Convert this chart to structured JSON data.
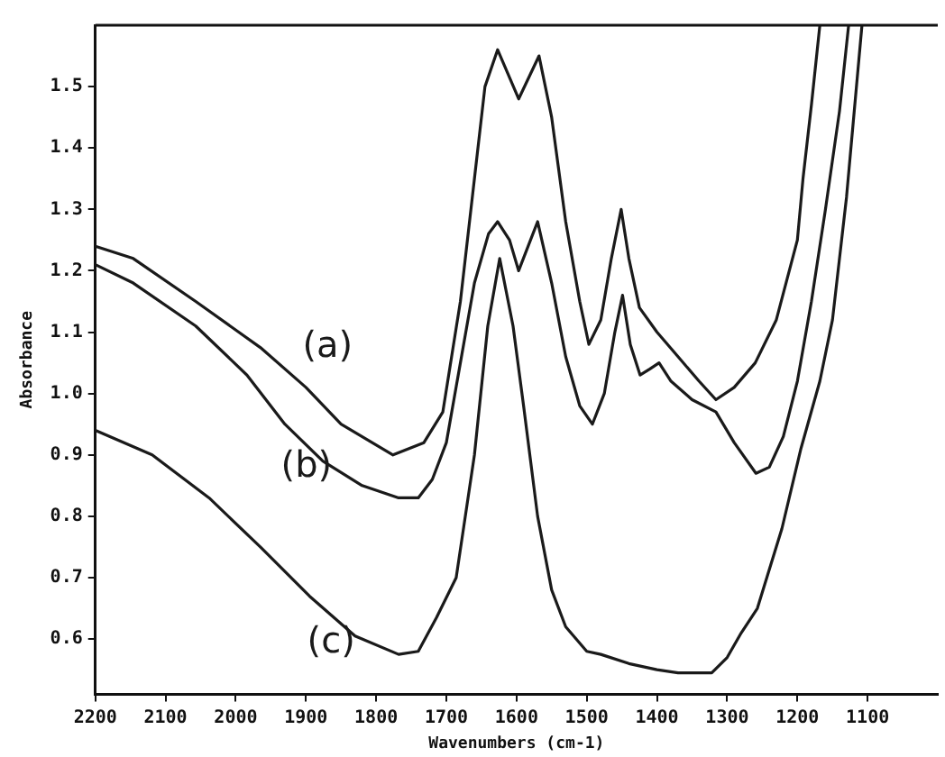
{
  "chart_data": {
    "type": "line",
    "xlabel": "Wavenumbers (cm-1)",
    "ylabel": "Absorbance",
    "xlim": [
      2200,
      1000
    ],
    "xticks": [
      2200,
      2100,
      2000,
      1900,
      1800,
      1700,
      1600,
      1500,
      1400,
      1300,
      1200,
      1100
    ],
    "ylim": [
      0.51,
      1.6
    ],
    "yticks": [
      0.6,
      0.7,
      0.8,
      0.9,
      {
        "value": 1,
        "label": "1.0"
      },
      1.1,
      1.2,
      1.3,
      1.4,
      1.5
    ],
    "grid": false,
    "legend": false,
    "marker": "none",
    "line_style": "solid",
    "series": [
      {
        "name": "(a)",
        "color": "#1a1a1a",
        "x": [
          2200,
          2146,
          2057,
          1965,
          1900,
          1850,
          1776,
          1732,
          1705,
          1680,
          1660,
          1645,
          1627,
          1597,
          1568,
          1550,
          1530,
          1510,
          1497,
          1480,
          1465,
          1451,
          1440,
          1425,
          1400,
          1370,
          1340,
          1316,
          1290,
          1260,
          1230,
          1200,
          1192,
          1180,
          1168
        ],
        "values": [
          1.24,
          1.22,
          1.15,
          1.075,
          1.01,
          0.95,
          0.9,
          0.92,
          0.97,
          1.15,
          1.35,
          1.5,
          1.56,
          1.48,
          1.55,
          1.45,
          1.28,
          1.15,
          1.08,
          1.12,
          1.22,
          1.3,
          1.22,
          1.14,
          1.1,
          1.06,
          1.02,
          0.99,
          1.01,
          1.05,
          1.12,
          1.25,
          1.35,
          1.47,
          1.6
        ]
      },
      {
        "name": "(b)",
        "color": "#1a1a1a",
        "x": [
          2200,
          2146,
          2057,
          1984,
          1930,
          1876,
          1820,
          1768,
          1740,
          1720,
          1700,
          1680,
          1660,
          1640,
          1627,
          1610,
          1597,
          1570,
          1550,
          1530,
          1510,
          1492,
          1475,
          1460,
          1449,
          1438,
          1424,
          1410,
          1397,
          1380,
          1350,
          1316,
          1290,
          1259,
          1240,
          1220,
          1200,
          1180,
          1160,
          1140,
          1127
        ],
        "values": [
          1.21,
          1.18,
          1.11,
          1.03,
          0.95,
          0.89,
          0.85,
          0.83,
          0.83,
          0.86,
          0.92,
          1.05,
          1.18,
          1.26,
          1.28,
          1.25,
          1.2,
          1.28,
          1.18,
          1.06,
          0.98,
          0.95,
          1.0,
          1.1,
          1.16,
          1.08,
          1.03,
          1.04,
          1.05,
          1.02,
          0.99,
          0.97,
          0.92,
          0.87,
          0.88,
          0.93,
          1.02,
          1.15,
          1.3,
          1.46,
          1.6
        ]
      },
      {
        "name": "(c)",
        "color": "#1a1a1a",
        "x": [
          2200,
          2119,
          2038,
          1965,
          1895,
          1830,
          1768,
          1740,
          1714,
          1686,
          1660,
          1641,
          1624,
          1605,
          1590,
          1570,
          1550,
          1530,
          1500,
          1480,
          1440,
          1400,
          1370,
          1340,
          1322,
          1300,
          1280,
          1257,
          1222,
          1195,
          1168,
          1150,
          1130,
          1108
        ],
        "values": [
          0.94,
          0.9,
          0.83,
          0.75,
          0.67,
          0.605,
          0.575,
          0.58,
          0.635,
          0.7,
          0.9,
          1.11,
          1.22,
          1.11,
          0.98,
          0.8,
          0.68,
          0.62,
          0.58,
          0.575,
          0.56,
          0.55,
          0.545,
          0.545,
          0.545,
          0.57,
          0.61,
          0.65,
          0.78,
          0.91,
          1.02,
          1.12,
          1.32,
          1.6
        ]
      }
    ]
  }
}
